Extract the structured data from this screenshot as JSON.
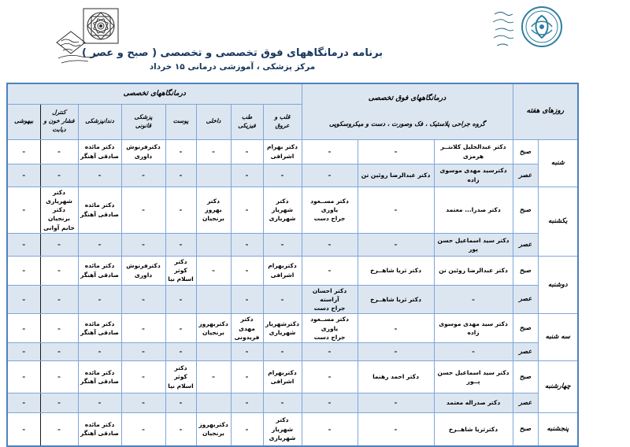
{
  "page": {
    "title": "برنامه درمانگاههای  فوق تخصصی و تخصصی ( صبح و عصر )",
    "subtitle": "مرکز پزشکی ، آموزشی درمانی ۱۵ خرداد"
  },
  "icons": {
    "left_logo": "university-geometric-flower-emblem",
    "right_logo": "medical-center-round-emblem"
  },
  "colors": {
    "header_fill": "#dce6f1",
    "border_blue": "#4f81bd",
    "title_navy": "#17365d",
    "logo_teal": "#2e7f9e"
  },
  "table": {
    "days_header": "روزهای هفته",
    "super_group": {
      "title": "درمانگاههای فوق تخصصی",
      "subtitle": "گروه جراحی پلاستیک ، فک وصورت ، دست و میکروسکوپی"
    },
    "specialty_group": {
      "title": "درمانگاههای تخصصی",
      "columns": [
        "قلب و\nعروق",
        "طب\nفیزیکی",
        "داخلی",
        "پوست",
        "پزشکی\nقانونی",
        "دندانپزشکی",
        "کنترل\nفشار خون و\nدیابت",
        "بیهوشی"
      ]
    }
  },
  "days": [
    {
      "name": "شنبه",
      "shifts": [
        {
          "label": "صبح",
          "type": "morning",
          "cells": [
            "دکتر عبدالجلیل کلانتــر هرمزی",
            "–",
            "–",
            "دکتر بهرام\nاشرافی",
            "–",
            "–",
            "–",
            "دکترفرنوش\nداوری",
            "دکتر مائده\nصادقی آهنگر",
            "–",
            "–"
          ]
        },
        {
          "label": "عصر",
          "type": "evening",
          "cells": [
            "دکترسید مهدی  موسوی زاده",
            "دکتر عبدالرضا روئین تن",
            "–",
            "–",
            "–",
            "",
            "–",
            "–",
            "–",
            "–",
            "–"
          ]
        }
      ]
    },
    {
      "name": "یکشنبه",
      "shifts": [
        {
          "label": "صبح",
          "type": "morning",
          "cells": [
            "دکتر صدرا... معتمد",
            "–",
            "دکتر مســعود یاوری\nجراح دست",
            "دکتر شهریار\nشهریاری",
            "–",
            "دکتر بهروز\nبرنجیان",
            "–",
            "–",
            "دکتر مائده\nصادقی آهنگر",
            "دکتر شهریاری\nدکتر برنجیان\nخانم آوانی",
            "–"
          ]
        },
        {
          "label": "عصر",
          "type": "evening",
          "cells": [
            "دکتر سید اسماعیل حسن پور",
            "–",
            "–",
            "–",
            "–",
            "",
            "–",
            "–",
            "–",
            "–",
            "–"
          ]
        }
      ]
    },
    {
      "name": "دوشنبه",
      "shifts": [
        {
          "label": "صبح",
          "type": "morning",
          "cells": [
            "دکتر عبدالرضا روئین تن",
            "دکتر ثریا شاهــرخ",
            "–",
            "دکتربهرام\nاشرافی",
            "–",
            "–",
            "دکتر کوثر\nاسلام نیا",
            "دکترفرنوش\nداوری",
            "دکتر مائده\nصادقی آهنگر",
            "–",
            "–"
          ]
        },
        {
          "label": "عصر",
          "type": "evening",
          "cells": [
            "–",
            "دکتر ثریا شاهــرخ",
            "دکتر احسان آراسته\nجراح دست",
            "–",
            "–",
            "",
            "–",
            "–",
            "–",
            "–",
            "–"
          ]
        }
      ]
    },
    {
      "name": "سه شنبه",
      "shifts": [
        {
          "label": "صبح",
          "type": "morning",
          "cells": [
            "دکتر سید مهدی موسوی زاده",
            "–",
            "دکتر مســعود یاوری\nجراح دست",
            "دکترشهریار\nشهریاری",
            "دکتر مهدی\nفریدونی",
            "دکتربهروز\nبرنجیان",
            "–",
            "–",
            "دکتر مائده\nصادقی آهنگر",
            "–",
            "–"
          ]
        },
        {
          "label": "عصر",
          "type": "evening",
          "cells": [
            "–",
            "–",
            "–",
            "–",
            "–",
            "",
            "–",
            "–",
            "–",
            "–",
            "–"
          ]
        }
      ]
    },
    {
      "name": "چهارشنبه",
      "shifts": [
        {
          "label": "صبح",
          "type": "morning",
          "cells": [
            "دکتر سید اسماعیل حسن پــور",
            "دکتر احمد رهنما",
            "–",
            "دکتربهرام\nاشرافی",
            "–",
            "–",
            "دکتر کوثر\nاسلام نیا",
            "–",
            "دکتر مائده\nصادقی آهنگر",
            "–",
            "–"
          ]
        },
        {
          "label": "عصر",
          "type": "evening",
          "cells": [
            "دکتر صدراله معتمد",
            "–",
            "–",
            "–",
            "–",
            "",
            "–",
            "–",
            "–",
            "–",
            "–"
          ]
        }
      ]
    },
    {
      "name": "پنجشنبه",
      "shifts": [
        {
          "label": "صبح",
          "type": "morning",
          "cells": [
            "دکترثریا شاهــرخ",
            "–",
            "–",
            "دکتر شهریار\nشهریاری",
            "–",
            "دکتربهروز\nبرنجیان",
            "–",
            "–",
            "دکتر مائده\nصادقی آهنگر",
            "–",
            "–"
          ]
        }
      ]
    }
  ]
}
